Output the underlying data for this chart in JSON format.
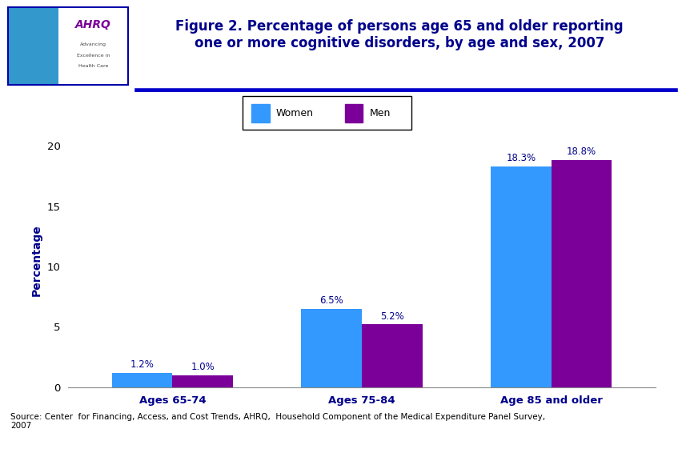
{
  "title": "Figure 2. Percentage of persons age 65 and older reporting\none or more cognitive disorders, by age and sex, 2007",
  "categories": [
    "Ages 65-74",
    "Ages 75-84",
    "Age 85 and older"
  ],
  "women_values": [
    1.2,
    6.5,
    18.3
  ],
  "men_values": [
    1.0,
    5.2,
    18.8
  ],
  "women_color": "#3399FF",
  "men_color": "#7B0099",
  "ylabel": "Percentage",
  "ylim": [
    0,
    21
  ],
  "yticks": [
    0,
    5,
    10,
    15,
    20
  ],
  "bar_width": 0.32,
  "legend_labels": [
    "Women",
    "Men"
  ],
  "source_text": "Source: Center  for Financing, Access, and Cost Trends, AHRQ,  Household Component of the Medical Expenditure Panel Survey,\n2007",
  "title_color": "#00008B",
  "ylabel_color": "#00008B",
  "axis_label_color": "#00008B",
  "xtick_color": "#00008B",
  "header_line_color": "#0000CC",
  "background_color": "#FFFFFF",
  "label_fontsize": 8.5,
  "title_fontsize": 12,
  "ylabel_fontsize": 10,
  "xtick_fontsize": 9.5,
  "ytick_fontsize": 9.5,
  "source_fontsize": 7.5,
  "logo_bg_color": "#3399CC",
  "logo_text_color": "#7B0099",
  "logo_box_border": "#0000AA"
}
